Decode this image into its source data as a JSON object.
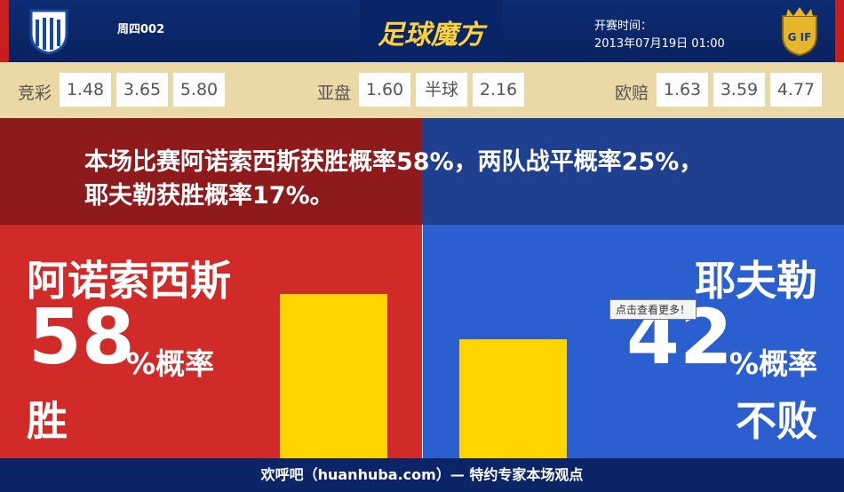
{
  "header": {
    "match_id": "周四002",
    "logo_text": "足球魔方",
    "time_label": "开赛时间：",
    "time": "2013年07月19日 01:00"
  },
  "odds": [
    {
      "label": "竞彩",
      "values": [
        "1.48",
        "3.65",
        "5.80"
      ]
    },
    {
      "label": "亚盘",
      "values": [
        "1.60",
        "半球",
        "2.16"
      ]
    },
    {
      "label": "欧赔",
      "values": [
        "1.63",
        "3.59",
        "4.77"
      ]
    }
  ],
  "summary": {
    "lines": [
      "本场比赛阿诺索西斯获胜概率58%，两队战平概率25%，",
      "耶夫勒获胜概率17%。"
    ]
  },
  "home": {
    "name": "阿诺索西斯",
    "percent": 58,
    "unit": "%概率",
    "result": "胜"
  },
  "away": {
    "name": "耶夫勒",
    "percent": 42,
    "unit": "%概率",
    "result": "不败"
  },
  "tooltip": "点击查看更多！",
  "footer": "欢呼吧（huanhuba.com）— 特约专家本场观点"
}
